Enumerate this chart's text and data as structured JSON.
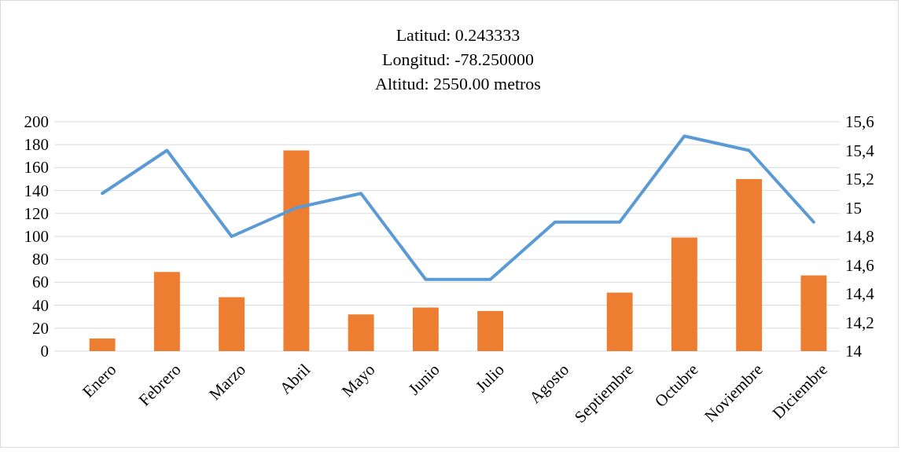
{
  "chart_data": {
    "type": "bar",
    "title": "Latitud: 0.243333\nLongitud: -78.250000\nAltitud: 2550.00 metros",
    "categories": [
      "Enero",
      "Febrero",
      "Marzo",
      "Abril",
      "Mayo",
      "Junio",
      "Julio",
      "Agosto",
      "Septiembre",
      "Octubre",
      "Noviembre",
      "Diciembre"
    ],
    "series": [
      {
        "color": "#ed7d31",
        "values": [
          11,
          69,
          47,
          175,
          32,
          38,
          35,
          0,
          51,
          99,
          150,
          66
        ]
      },
      {
        "type": "line",
        "axis": "y2",
        "color": "#5b9bd5",
        "values": [
          15.1,
          15.4,
          14.8,
          15.0,
          15.1,
          14.5,
          14.5,
          14.9,
          14.9,
          15.5,
          15.4,
          14.9
        ]
      }
    ],
    "ylim": [
      0,
      200
    ],
    "yticks": [
      0,
      20,
      40,
      60,
      80,
      100,
      120,
      140,
      160,
      180,
      200
    ],
    "y2lim": [
      14,
      15.6
    ],
    "y2ticks": [
      {
        "value": 14,
        "label": "14"
      },
      {
        "value": 14.2,
        "label": "14,2"
      },
      {
        "value": 14.4,
        "label": "14,4"
      },
      {
        "value": 14.6,
        "label": "14,6"
      },
      {
        "value": 14.8,
        "label": "14,8"
      },
      {
        "value": 15,
        "label": "15"
      },
      {
        "value": 15.2,
        "label": "15,2"
      },
      {
        "value": 15.4,
        "label": "15,4"
      },
      {
        "value": 15.6,
        "label": "15,6"
      }
    ],
    "grid": "y"
  }
}
